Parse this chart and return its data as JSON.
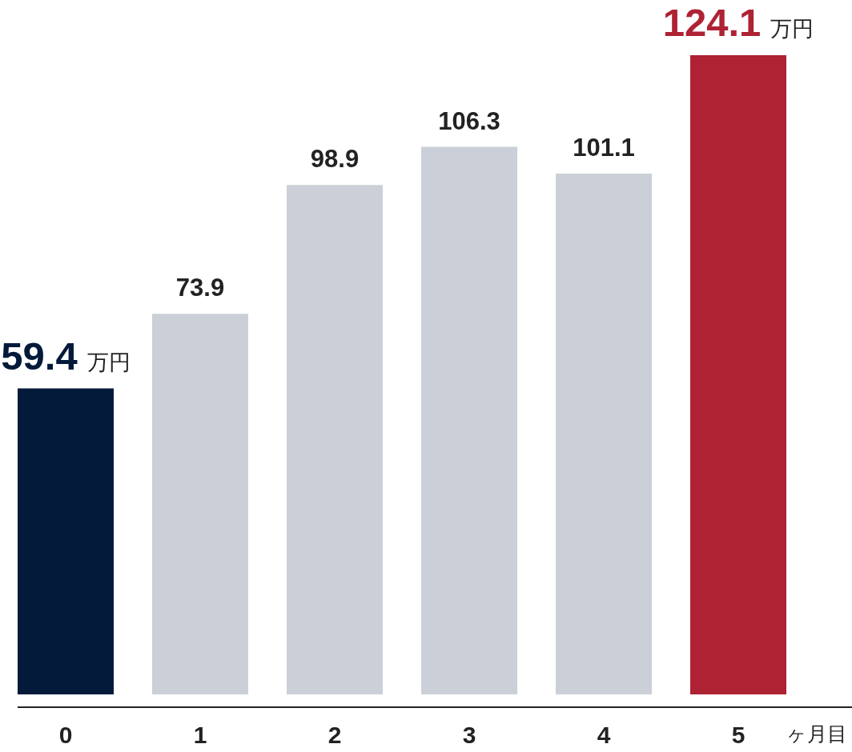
{
  "chart_data": {
    "type": "bar",
    "xlabel": "ヶ月目",
    "categories": [
      "0",
      "1",
      "2",
      "3",
      "4",
      "5"
    ],
    "values": [
      59.4,
      73.9,
      98.9,
      106.3,
      101.1,
      124.1
    ],
    "colors": [
      "#031a3a",
      "#cbd0d8",
      "#cbd0d8",
      "#cbd0d8",
      "#cbd0d8",
      "#ae2234"
    ],
    "data_labels": true,
    "annotations": [
      {
        "text": "万円",
        "x": "0",
        "y": 59.4
      },
      {
        "text": "万円",
        "x": "5",
        "y": 124.1
      }
    ]
  }
}
